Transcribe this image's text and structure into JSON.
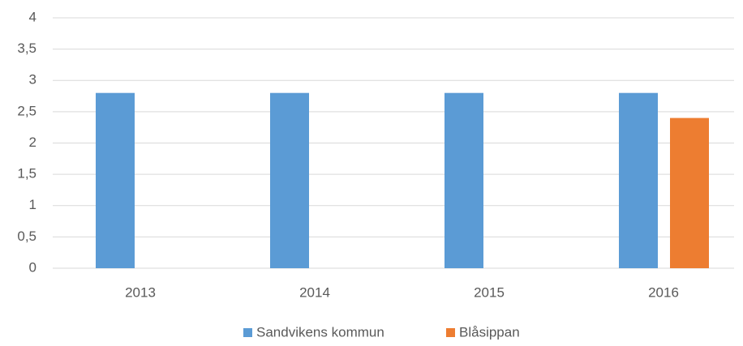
{
  "chart_data": {
    "type": "bar",
    "categories": [
      "2013",
      "2014",
      "2015",
      "2016"
    ],
    "series": [
      {
        "name": "Sandvikens kommun",
        "color": "#5b9bd5",
        "values": [
          2.8,
          2.8,
          2.8,
          2.8
        ]
      },
      {
        "name": "Blåsippan",
        "color": "#ed7d31",
        "values": [
          null,
          null,
          null,
          2.4
        ]
      }
    ],
    "ylim": [
      0,
      4
    ],
    "yticks": [
      0,
      {
        "value": 0.5,
        "label": "0,5"
      },
      1,
      {
        "value": 1.5,
        "label": "1,5"
      },
      2,
      {
        "value": 2.5,
        "label": "2,5"
      },
      3,
      {
        "value": 3.5,
        "label": "3,5"
      },
      4
    ],
    "grid": true,
    "legend": "bottom"
  }
}
